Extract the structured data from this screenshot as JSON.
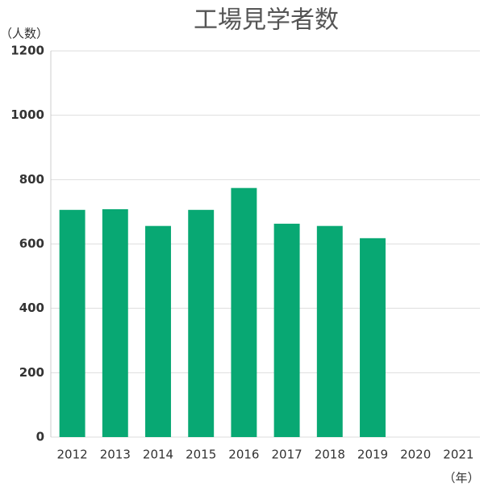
{
  "chart_data": {
    "type": "bar",
    "title": "工場見学者数",
    "y_label": "（人数）",
    "x_label": "（年）",
    "categories": [
      "2012",
      "2013",
      "2014",
      "2015",
      "2016",
      "2017",
      "2018",
      "2019",
      "2020",
      "2021"
    ],
    "values": [
      706,
      708,
      656,
      706,
      774,
      663,
      656,
      618,
      null,
      null
    ],
    "color": "#08a873",
    "ylim": [
      0,
      1200
    ],
    "yticks": [
      0,
      200,
      400,
      600,
      800,
      1000,
      1200
    ],
    "grid": true
  }
}
